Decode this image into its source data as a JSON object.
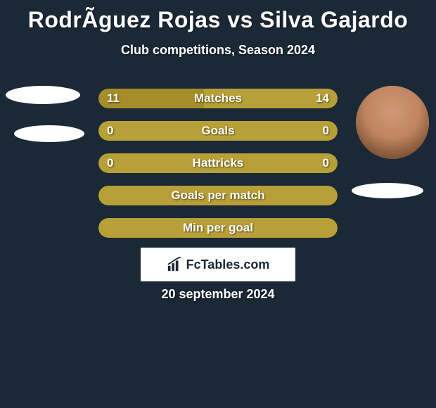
{
  "title": "RodrÃ­guez Rojas vs Silva Gajardo",
  "subtitle": "Club competitions, Season 2024",
  "date": "20 september 2024",
  "brand": "FcTables.com",
  "colors": {
    "background": "#1b2836",
    "bar_a": "#a58e29",
    "bar_b": "#b7a037",
    "text": "#ffffff"
  },
  "player_left": {
    "has_photo": false
  },
  "player_right": {
    "has_photo": true
  },
  "bars": [
    {
      "label": "Matches",
      "left_val": "11",
      "right_val": "14",
      "left_pct": 44,
      "right_pct": 56,
      "show_vals": true
    },
    {
      "label": "Goals",
      "left_val": "0",
      "right_val": "0",
      "left_pct": 0,
      "right_pct": 100,
      "show_vals": true,
      "full_color": "b"
    },
    {
      "label": "Hattricks",
      "left_val": "0",
      "right_val": "0",
      "left_pct": 0,
      "right_pct": 100,
      "show_vals": true,
      "full_color": "b"
    },
    {
      "label": "Goals per match",
      "left_val": "",
      "right_val": "",
      "left_pct": 0,
      "right_pct": 100,
      "show_vals": false,
      "full_color": "b"
    },
    {
      "label": "Min per goal",
      "left_val": "",
      "right_val": "",
      "left_pct": 0,
      "right_pct": 100,
      "show_vals": false,
      "full_color": "b"
    }
  ]
}
